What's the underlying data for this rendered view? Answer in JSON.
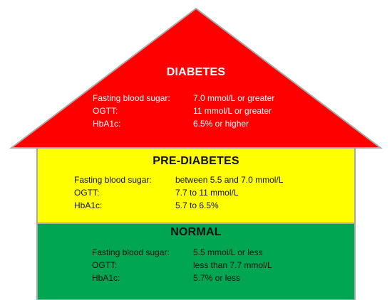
{
  "colors": {
    "diabetes": "#ff0000",
    "prediabetes": "#ffff00",
    "normal": "#00a651",
    "outline": "#a9a9a9"
  },
  "diabetes": {
    "title": "DIABETES",
    "rows": [
      {
        "label": "Fasting blood sugar:",
        "value": "7.0 mmol/L or greater"
      },
      {
        "label": "OGTT:",
        "value": "11 mmol/L or greater"
      },
      {
        "label": "HbA1c:",
        "value": "6.5% or higher"
      }
    ]
  },
  "prediabetes": {
    "title": "PRE-DIABETES",
    "rows": [
      {
        "label": "Fasting blood sugar:",
        "value": "between 5.5 and 7.0 mmol/L"
      },
      {
        "label": "OGTT:",
        "value": "7.7 to 11 mmol/L"
      },
      {
        "label": "HbA1c:",
        "value": "5.7 to 6.5%"
      }
    ]
  },
  "normal": {
    "title": "NORMAL",
    "rows": [
      {
        "label": "Fasting blood sugar:",
        "value": "5.5 mmol/L or less"
      },
      {
        "label": "OGTT:",
        "value": "less than 7.7 mmol/L"
      },
      {
        "label": "HbA1c:",
        "value": "5.7% or less"
      }
    ]
  }
}
